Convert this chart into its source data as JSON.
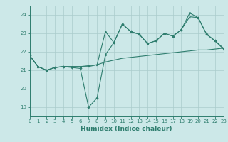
{
  "background_color": "#cce8e8",
  "grid_color": "#aacccc",
  "line_color": "#2e7d6e",
  "x_min": 0,
  "x_max": 23,
  "y_min": 18.5,
  "y_max": 24.5,
  "yticks": [
    19,
    20,
    21,
    22,
    23,
    24
  ],
  "xticks": [
    0,
    1,
    2,
    3,
    4,
    5,
    6,
    7,
    8,
    9,
    10,
    11,
    12,
    13,
    14,
    15,
    16,
    17,
    18,
    19,
    20,
    21,
    22,
    23
  ],
  "xlabel": "Humidex (Indice chaleur)",
  "series1_x": [
    0,
    1,
    2,
    3,
    4,
    5,
    6,
    7,
    8,
    9,
    10,
    11,
    12,
    13,
    14,
    15,
    16,
    17,
    18,
    19,
    20,
    21,
    22,
    23
  ],
  "series1_y": [
    21.8,
    21.2,
    21.0,
    21.15,
    21.2,
    21.2,
    21.2,
    21.2,
    21.3,
    21.45,
    21.55,
    21.65,
    21.7,
    21.75,
    21.8,
    21.85,
    21.9,
    21.95,
    22.0,
    22.05,
    22.1,
    22.1,
    22.15,
    22.2
  ],
  "series2_x": [
    0,
    1,
    2,
    3,
    4,
    5,
    6,
    7,
    8,
    9,
    10,
    11,
    12,
    13,
    14,
    15,
    16,
    17,
    18,
    19,
    20,
    21,
    22,
    23
  ],
  "series2_y": [
    21.8,
    21.2,
    21.0,
    21.15,
    21.2,
    21.2,
    21.2,
    21.25,
    21.3,
    23.1,
    22.5,
    23.5,
    23.1,
    22.95,
    22.45,
    22.6,
    23.0,
    22.85,
    23.2,
    23.9,
    23.85,
    22.95,
    22.6,
    22.15
  ],
  "series3_x": [
    0,
    1,
    2,
    3,
    4,
    5,
    6,
    7,
    8,
    9,
    10,
    11,
    12,
    13,
    14,
    15,
    16,
    17,
    18,
    19,
    20,
    21,
    22,
    23
  ],
  "series3_y": [
    21.8,
    21.2,
    21.0,
    21.15,
    21.2,
    21.15,
    21.1,
    19.0,
    19.5,
    21.85,
    22.5,
    23.5,
    23.1,
    22.95,
    22.45,
    22.6,
    23.0,
    22.85,
    23.2,
    24.1,
    23.85,
    22.95,
    22.6,
    22.2
  ]
}
